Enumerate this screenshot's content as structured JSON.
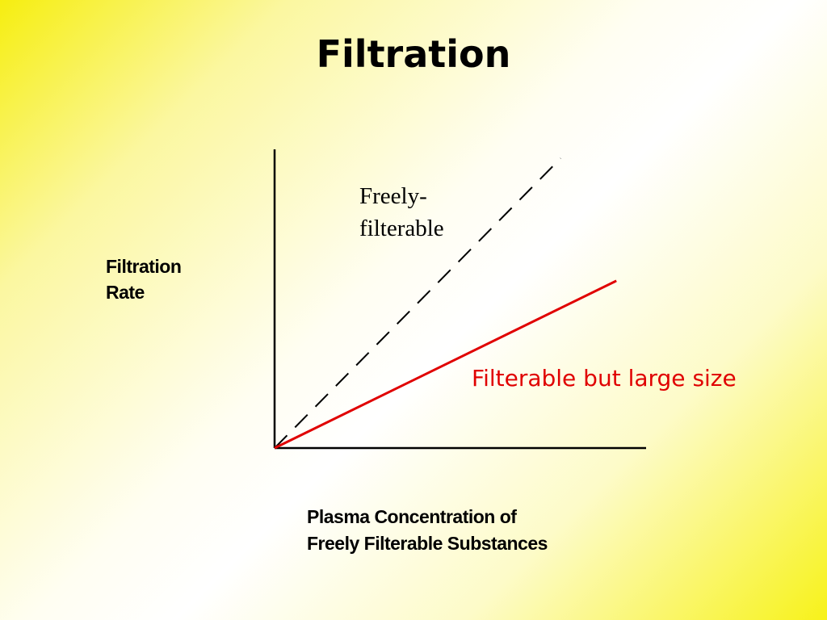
{
  "slide": {
    "title": "Filtration"
  },
  "chart_data": {
    "type": "line",
    "ylabel_lines": [
      "Filtration",
      "Rate"
    ],
    "xlabel_lines": [
      "Plasma Concentration of",
      "Freely Filterable Substances"
    ],
    "xlim": [
      0,
      1
    ],
    "ylim": [
      0,
      1
    ],
    "grid": false,
    "series": [
      {
        "name_lines": [
          "Freely-",
          "filterable"
        ],
        "style": "dashed",
        "color": "#000000",
        "x": [
          0,
          0.77
        ],
        "y": [
          0,
          0.97
        ]
      },
      {
        "name": "Filterable but large size",
        "style": "solid",
        "color": "#e00000",
        "x": [
          0,
          0.92
        ],
        "y": [
          0,
          0.56
        ]
      }
    ]
  }
}
